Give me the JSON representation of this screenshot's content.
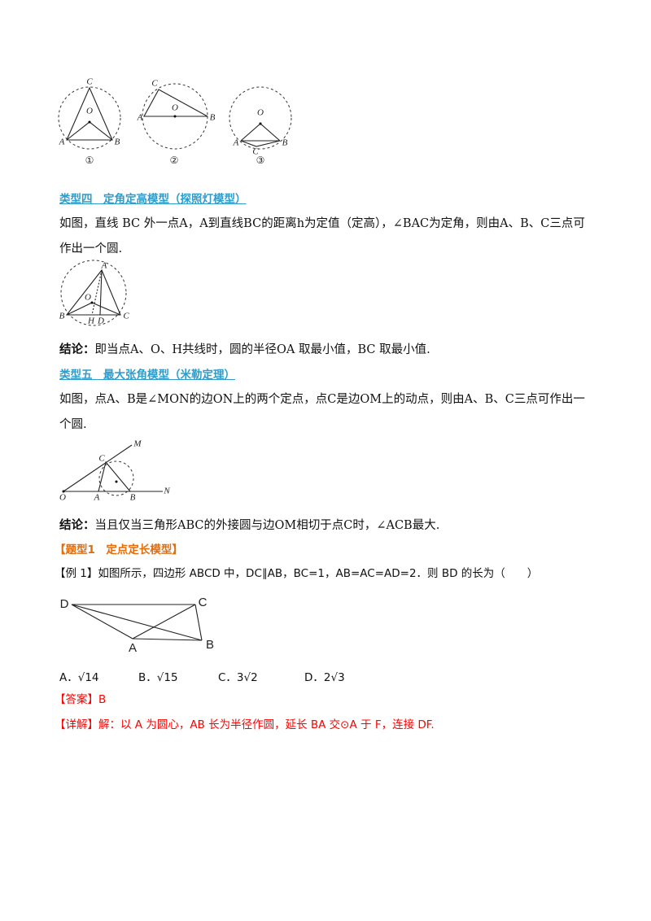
{
  "figure_group_1": {
    "figures": [
      {
        "labels": [
          "C",
          "O",
          "A",
          "B"
        ],
        "caption": "①"
      },
      {
        "labels": [
          "C",
          "O",
          "A",
          "B"
        ],
        "caption": "②"
      },
      {
        "labels": [
          "O",
          "A",
          "C",
          "B"
        ],
        "caption": "③"
      }
    ]
  },
  "section_4": {
    "title": "类型四　定角定高模型（探照灯模型）",
    "body": "如图，直线 BC 外一点A，A到直线BC的距离h为定值（定高），∠BAC为定角，则由A、B、C三点可作出一个圆.",
    "figure_labels": [
      "A",
      "O",
      "B",
      "C",
      "H",
      "D"
    ],
    "conclusion_label": "结论：",
    "conclusion": "即当点A、O、H共线时，圆的半径OA 取最小值，BC 取最小值."
  },
  "section_5": {
    "title": "类型五　最大张角模型（米勒定理）",
    "body": "如图，点A、B是∠MON的边ON上的两个定点，点C是边OM上的动点，则由A、B、C三点可作出一个圆.",
    "figure_labels": [
      "M",
      "C",
      "O",
      "A",
      "B",
      "N"
    ],
    "conclusion_label": "结论：",
    "conclusion": "当且仅当三角形ABC的外接圆与边OM相切于点C时，∠ACB最大."
  },
  "problem_type": "【题型1　定点定长模型】",
  "example": {
    "label": "【例 1】",
    "question": "如图所示，四边形 ABCD 中，DC∥AB，BC=1，AB=AC=AD=2．则 BD 的长为（　　）",
    "figure_labels": [
      "D",
      "C",
      "A",
      "B"
    ],
    "options": [
      "A．√14",
      "B．√15",
      "C．3√2",
      "D．2√3"
    ],
    "answer_label": "【答案】",
    "answer": "B",
    "explanation_label": "【详解】",
    "explanation": "解：以 A 为圆心，AB 长为半径作圆，延长 BA 交⊙A 于 F，连接 DF."
  }
}
